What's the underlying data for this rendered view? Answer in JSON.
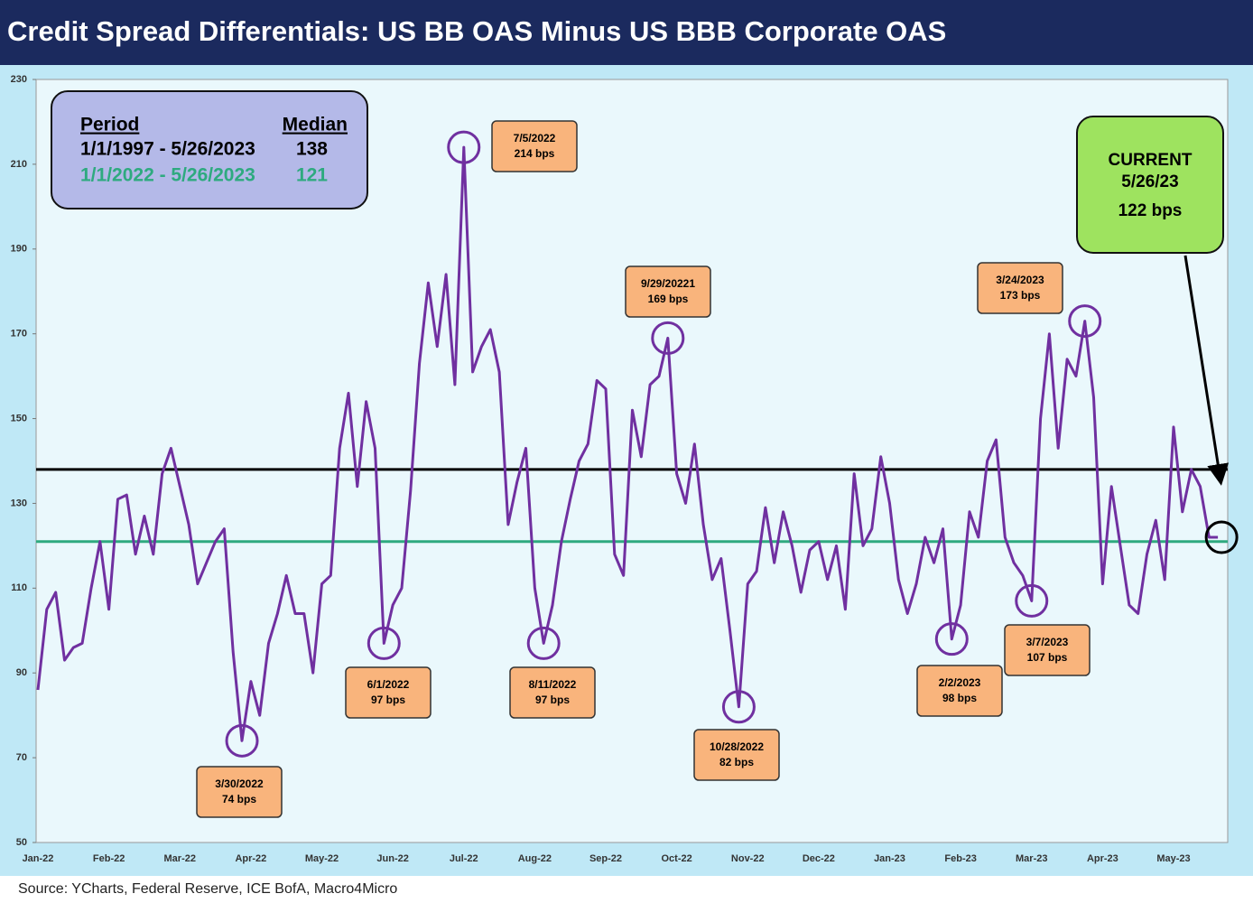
{
  "chart_data": {
    "type": "line",
    "title": "Credit Spread Differentials: US BB OAS Minus US BBB Corporate OAS",
    "source": "Source: YCharts, Federal Reserve, ICE BofA, Macro4Micro",
    "categories": [
      "Jan-22",
      null,
      null,
      null,
      null,
      null,
      null,
      null,
      "Feb-22",
      null,
      null,
      null,
      null,
      null,
      null,
      null,
      "Mar-22",
      null,
      null,
      null,
      null,
      null,
      null,
      null,
      "Apr-22",
      null,
      null,
      null,
      null,
      null,
      null,
      null,
      "May-22",
      null,
      null,
      null,
      null,
      null,
      null,
      null,
      "Jun-22",
      null,
      null,
      null,
      null,
      null,
      null,
      null,
      "Jul-22",
      null,
      null,
      null,
      null,
      null,
      null,
      null,
      "Aug-22",
      null,
      null,
      null,
      null,
      null,
      null,
      null,
      "Sep-22",
      null,
      null,
      null,
      null,
      null,
      null,
      null,
      "Oct-22",
      null,
      null,
      null,
      null,
      null,
      null,
      null,
      "Nov-22",
      null,
      null,
      null,
      null,
      null,
      null,
      null,
      "Dec-22",
      null,
      null,
      null,
      null,
      null,
      null,
      null,
      "Jan-23",
      null,
      null,
      null,
      null,
      null,
      null,
      null,
      "Feb-23",
      null,
      null,
      null,
      null,
      null,
      null,
      null,
      "Mar-23",
      null,
      null,
      null,
      null,
      null,
      null,
      null,
      "Apr-23",
      null,
      null,
      null,
      null,
      null,
      null,
      null,
      "May-23",
      null,
      null,
      null,
      null,
      null
    ],
    "series": [
      {
        "color": "#7030a0",
        "values": [
          86,
          105,
          109,
          93,
          96,
          97,
          110,
          121,
          105,
          131,
          132,
          118,
          127,
          118,
          137,
          143,
          134,
          125,
          111,
          116,
          121,
          124,
          95,
          74,
          88,
          80,
          97,
          104,
          113,
          104,
          104,
          90,
          111,
          113,
          143,
          156,
          134,
          154,
          143,
          97,
          106,
          110,
          133,
          163,
          182,
          167,
          184,
          158,
          214,
          161,
          167,
          171,
          161,
          125,
          135,
          143,
          110,
          97,
          106,
          121,
          131,
          140,
          144,
          159,
          157,
          118,
          113,
          152,
          141,
          158,
          160,
          169,
          137,
          130,
          144,
          125,
          112,
          117,
          100,
          82,
          111,
          114,
          129,
          116,
          128,
          120,
          109,
          119,
          121,
          112,
          120,
          105,
          137,
          120,
          124,
          141,
          130,
          112,
          104,
          111,
          122,
          116,
          124,
          98,
          106,
          128,
          122,
          140,
          145,
          122,
          116,
          113,
          107,
          150,
          170,
          143,
          164,
          160,
          173,
          155,
          111,
          134,
          120,
          106,
          104,
          118,
          126,
          112,
          148,
          128,
          138,
          134,
          122,
          122
        ]
      }
    ],
    "ylim": [
      50,
      230
    ],
    "yticks": [
      50,
      70,
      90,
      110,
      130,
      150,
      170,
      190,
      210,
      230
    ],
    "legend": {
      "header": {
        "period": "Period",
        "median": "Median"
      },
      "rows": [
        {
          "period": "1/1/1997 - 5/26/2023",
          "median": 138,
          "color": "#000000"
        },
        {
          "period": "1/1/2022 - 5/26/2023",
          "median": 121,
          "color": "#2eaa7f"
        }
      ]
    },
    "annotations": [
      {
        "date": "3/30/2022",
        "text": "74 bps"
      },
      {
        "date": "6/1/2022",
        "text": "97 bps"
      },
      {
        "date": "7/5/2022",
        "text": "214 bps"
      },
      {
        "date": "8/11/2022",
        "text": "97 bps"
      },
      {
        "date": "9/29/20221",
        "text": "169 bps"
      },
      {
        "date": "10/28/2022",
        "text": "82 bps"
      },
      {
        "date": "2/2/2023",
        "text": "98 bps"
      },
      {
        "date": "3/7/2023",
        "text": "107 bps"
      },
      {
        "date": "3/24/2023",
        "text": "173 bps"
      }
    ],
    "current": {
      "label": "CURRENT",
      "date": "5/26/23",
      "text": "122 bps"
    }
  }
}
